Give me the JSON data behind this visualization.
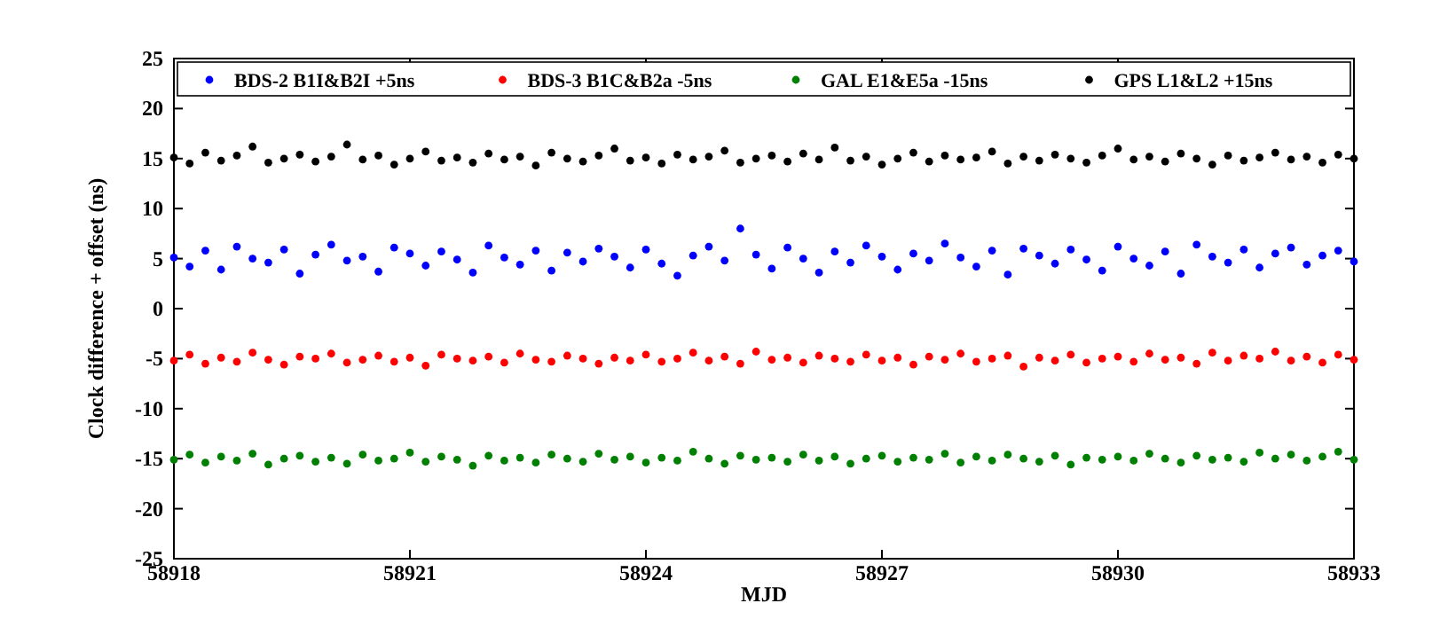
{
  "chart_data": {
    "type": "scatter",
    "xlabel": "MJD",
    "ylabel": "Clock difference + offset (ns)",
    "xlim": [
      58918,
      58933
    ],
    "xticks": [
      58918,
      58921,
      58924,
      58927,
      58930,
      58933
    ],
    "ylim": [
      -25,
      25
    ],
    "yticks": [
      -25,
      -20,
      -15,
      -10,
      -5,
      0,
      5,
      10,
      15,
      20,
      25
    ],
    "legend": "top",
    "marker": "circle",
    "x": [
      58918,
      58918.2,
      58918.4,
      58918.6,
      58918.8,
      58919,
      58919.2,
      58919.4,
      58919.6,
      58919.8,
      58920,
      58920.2,
      58920.4,
      58920.6,
      58920.8,
      58921,
      58921.2,
      58921.4,
      58921.6,
      58921.8,
      58922,
      58922.2,
      58922.4,
      58922.6,
      58922.8,
      58923,
      58923.2,
      58923.4,
      58923.6,
      58923.8,
      58924,
      58924.2,
      58924.4,
      58924.6,
      58924.8,
      58925,
      58925.2,
      58925.4,
      58925.6,
      58925.8,
      58926,
      58926.2,
      58926.4,
      58926.6,
      58926.8,
      58927,
      58927.2,
      58927.4,
      58927.6,
      58927.8,
      58928,
      58928.2,
      58928.4,
      58928.6,
      58928.8,
      58929,
      58929.2,
      58929.4,
      58929.6,
      58929.8,
      58930,
      58930.2,
      58930.4,
      58930.6,
      58930.8,
      58931,
      58931.2,
      58931.4,
      58931.6,
      58931.8,
      58932,
      58932.2,
      58932.4,
      58932.6,
      58932.8,
      58933
    ],
    "series": [
      {
        "name": "BDS-2 B1I&B2I +5ns",
        "color": "#0000ff",
        "values": [
          5.1,
          4.2,
          5.8,
          3.9,
          6.2,
          5.0,
          4.6,
          5.9,
          3.5,
          5.4,
          6.4,
          4.8,
          5.2,
          3.7,
          6.1,
          5.5,
          4.3,
          5.7,
          4.9,
          3.6,
          6.3,
          5.1,
          4.4,
          5.8,
          3.8,
          5.6,
          4.7,
          6.0,
          5.2,
          4.1,
          5.9,
          4.5,
          3.3,
          5.3,
          6.2,
          4.8,
          8.0,
          5.4,
          4.0,
          6.1,
          5.0,
          3.6,
          5.7,
          4.6,
          6.3,
          5.2,
          3.9,
          5.5,
          4.8,
          6.5,
          5.1,
          4.2,
          5.8,
          3.4,
          6.0,
          5.3,
          4.5,
          5.9,
          4.9,
          3.8,
          6.2,
          5.0,
          4.3,
          5.7,
          3.5,
          6.4,
          5.2,
          4.6,
          5.9,
          4.1,
          5.5,
          6.1,
          4.4,
          5.3,
          5.8,
          4.7
        ]
      },
      {
        "name": "BDS-3 B1C&B2a -5ns",
        "color": "#ff0000",
        "values": [
          -5.2,
          -4.6,
          -5.5,
          -4.9,
          -5.3,
          -4.4,
          -5.1,
          -5.6,
          -4.8,
          -5.0,
          -4.5,
          -5.4,
          -5.1,
          -4.7,
          -5.3,
          -4.9,
          -5.7,
          -4.6,
          -5.0,
          -5.2,
          -4.8,
          -5.4,
          -4.5,
          -5.1,
          -5.3,
          -4.7,
          -5.0,
          -5.5,
          -4.9,
          -5.2,
          -4.6,
          -5.3,
          -5.0,
          -4.4,
          -5.2,
          -4.8,
          -5.5,
          -4.3,
          -5.1,
          -4.9,
          -5.4,
          -4.7,
          -5.0,
          -5.3,
          -4.6,
          -5.2,
          -4.9,
          -5.6,
          -4.8,
          -5.1,
          -4.5,
          -5.3,
          -5.0,
          -4.7,
          -5.8,
          -4.9,
          -5.2,
          -4.6,
          -5.4,
          -5.0,
          -4.8,
          -5.3,
          -4.5,
          -5.1,
          -4.9,
          -5.5,
          -4.4,
          -5.2,
          -4.7,
          -5.0,
          -4.3,
          -5.2,
          -4.8,
          -5.4,
          -4.6,
          -5.1
        ]
      },
      {
        "name": "GAL E1&E5a -15ns",
        "color": "#008000",
        "values": [
          -15.1,
          -14.6,
          -15.4,
          -14.8,
          -15.2,
          -14.5,
          -15.6,
          -15.0,
          -14.7,
          -15.3,
          -14.9,
          -15.5,
          -14.6,
          -15.2,
          -15.0,
          -14.4,
          -15.3,
          -14.8,
          -15.1,
          -15.7,
          -14.7,
          -15.2,
          -14.9,
          -15.4,
          -14.6,
          -15.0,
          -15.3,
          -14.5,
          -15.1,
          -14.8,
          -15.4,
          -14.9,
          -15.2,
          -14.3,
          -15.0,
          -15.5,
          -14.7,
          -15.1,
          -14.9,
          -15.3,
          -14.6,
          -15.2,
          -14.8,
          -15.5,
          -15.0,
          -14.7,
          -15.3,
          -14.9,
          -15.1,
          -14.5,
          -15.4,
          -14.8,
          -15.2,
          -14.6,
          -15.0,
          -15.3,
          -14.7,
          -15.6,
          -14.9,
          -15.1,
          -14.8,
          -15.2,
          -14.5,
          -15.0,
          -15.4,
          -14.7,
          -15.1,
          -14.9,
          -15.3,
          -14.4,
          -15.0,
          -14.6,
          -15.2,
          -14.8,
          -14.3,
          -15.1
        ]
      },
      {
        "name": "GPS L1&L2 +15ns",
        "color": "#000000",
        "values": [
          15.1,
          14.5,
          15.6,
          14.8,
          15.3,
          16.2,
          14.6,
          15.0,
          15.4,
          14.7,
          15.2,
          16.4,
          14.9,
          15.3,
          14.4,
          15.0,
          15.7,
          14.8,
          15.1,
          14.6,
          15.5,
          14.9,
          15.2,
          14.3,
          15.6,
          15.0,
          14.7,
          15.3,
          16.0,
          14.8,
          15.1,
          14.5,
          15.4,
          14.9,
          15.2,
          15.8,
          14.6,
          15.0,
          15.3,
          14.7,
          15.5,
          14.9,
          16.1,
          14.8,
          15.2,
          14.4,
          15.0,
          15.6,
          14.7,
          15.3,
          14.9,
          15.1,
          15.7,
          14.5,
          15.2,
          14.8,
          15.4,
          15.0,
          14.6,
          15.3,
          16.0,
          14.9,
          15.2,
          14.7,
          15.5,
          15.0,
          14.4,
          15.3,
          14.8,
          15.1,
          15.6,
          14.9,
          15.2,
          14.6,
          15.4,
          15.0
        ]
      }
    ]
  }
}
